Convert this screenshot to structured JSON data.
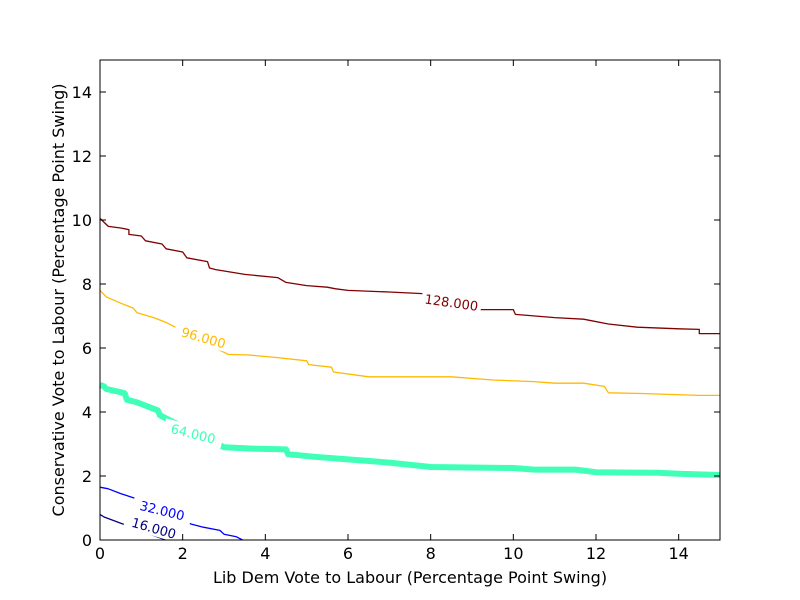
{
  "chart_data": {
    "type": "line",
    "xlabel": "Lib Dem Vote to Labour (Percentage Point Swing)",
    "ylabel": "Conservative Vote to Labour (Percentage Point Swing)",
    "xlim": [
      0,
      15
    ],
    "ylim": [
      0,
      15
    ],
    "x_ticks": [
      0,
      2,
      4,
      6,
      8,
      10,
      12,
      14
    ],
    "y_ticks": [
      0,
      2,
      4,
      6,
      8,
      10,
      12,
      14
    ],
    "x_tick_labels": [
      "0",
      "2",
      "4",
      "6",
      "8",
      "10",
      "12",
      "14"
    ],
    "y_tick_labels": [
      "0",
      "2",
      "4",
      "6",
      "8",
      "10",
      "12",
      "14"
    ],
    "grid": false,
    "series": [
      {
        "level": "16.000",
        "color": "#00007f",
        "label_at": [
          1.3,
          0.35
        ],
        "label_angle": 16,
        "points": [
          [
            0,
            0.8
          ],
          [
            0.1,
            0.72
          ],
          [
            1.55,
            0.02
          ],
          [
            1.6,
            0
          ]
        ]
      },
      {
        "level": "32.000",
        "color": "#0000ff",
        "label_at": [
          1.5,
          0.9
        ],
        "label_angle": 14,
        "points": [
          [
            0,
            1.65
          ],
          [
            0.2,
            1.6
          ],
          [
            0.5,
            1.45
          ],
          [
            0.9,
            1.28
          ],
          [
            1.0,
            1.25
          ],
          [
            2.2,
            0.5
          ],
          [
            2.5,
            0.4
          ],
          [
            2.9,
            0.3
          ],
          [
            3.0,
            0.18
          ],
          [
            3.3,
            0.1
          ],
          [
            3.45,
            0
          ]
        ]
      },
      {
        "level": "64.000",
        "color": "#40ffb7",
        "label_at": [
          2.25,
          3.3
        ],
        "label_angle": 14,
        "points": [
          [
            0,
            4.85
          ],
          [
            0.1,
            4.8
          ],
          [
            0.15,
            4.72
          ],
          [
            0.5,
            4.62
          ],
          [
            0.6,
            4.58
          ],
          [
            0.65,
            4.38
          ],
          [
            0.9,
            4.3
          ],
          [
            1.0,
            4.25
          ],
          [
            1.4,
            4.05
          ],
          [
            1.45,
            3.9
          ],
          [
            1.6,
            3.8
          ],
          [
            3.0,
            2.9
          ],
          [
            3.8,
            2.85
          ],
          [
            4.5,
            2.83
          ],
          [
            4.55,
            2.68
          ],
          [
            5.2,
            2.6
          ],
          [
            6.0,
            2.52
          ],
          [
            7.0,
            2.42
          ],
          [
            8.0,
            2.28
          ],
          [
            10.0,
            2.25
          ],
          [
            10.5,
            2.2
          ],
          [
            11.5,
            2.2
          ],
          [
            12.0,
            2.12
          ],
          [
            13.5,
            2.1
          ],
          [
            14.0,
            2.07
          ],
          [
            15.0,
            2.03
          ]
        ]
      },
      {
        "level": "96.000",
        "color": "#ffb900",
        "label_at": [
          2.5,
          6.3
        ],
        "label_angle": 16,
        "points": [
          [
            0,
            7.8
          ],
          [
            0.15,
            7.6
          ],
          [
            0.5,
            7.4
          ],
          [
            0.8,
            7.25
          ],
          [
            0.9,
            7.1
          ],
          [
            1.3,
            6.95
          ],
          [
            1.6,
            6.8
          ],
          [
            3.1,
            5.8
          ],
          [
            3.6,
            5.78
          ],
          [
            4.3,
            5.7
          ],
          [
            5.0,
            5.6
          ],
          [
            5.05,
            5.48
          ],
          [
            5.6,
            5.4
          ],
          [
            5.65,
            5.25
          ],
          [
            6.5,
            5.1
          ],
          [
            8.5,
            5.1
          ],
          [
            9.5,
            5.0
          ],
          [
            10.5,
            4.95
          ],
          [
            11.0,
            4.9
          ],
          [
            11.7,
            4.9
          ],
          [
            12.2,
            4.8
          ],
          [
            12.3,
            4.6
          ],
          [
            13.0,
            4.58
          ],
          [
            14.5,
            4.52
          ],
          [
            15.0,
            4.52
          ]
        ]
      },
      {
        "level": "128.000",
        "color": "#7f0000",
        "label_at": [
          8.5,
          7.4
        ],
        "label_angle": 8,
        "points": [
          [
            0,
            10.05
          ],
          [
            0.2,
            9.8
          ],
          [
            0.5,
            9.75
          ],
          [
            0.7,
            9.7
          ],
          [
            0.7,
            9.55
          ],
          [
            1.0,
            9.5
          ],
          [
            1.1,
            9.35
          ],
          [
            1.5,
            9.25
          ],
          [
            1.6,
            9.1
          ],
          [
            2.0,
            9.0
          ],
          [
            2.1,
            8.82
          ],
          [
            2.6,
            8.7
          ],
          [
            2.65,
            8.5
          ],
          [
            2.8,
            8.45
          ],
          [
            3.5,
            8.3
          ],
          [
            4.3,
            8.2
          ],
          [
            4.5,
            8.05
          ],
          [
            5.0,
            7.95
          ],
          [
            5.5,
            7.9
          ],
          [
            5.7,
            7.85
          ],
          [
            6.0,
            7.8
          ],
          [
            7.0,
            7.75
          ],
          [
            7.8,
            7.7
          ],
          [
            9.2,
            7.2
          ],
          [
            10.0,
            7.2
          ],
          [
            10.05,
            7.05
          ],
          [
            11.0,
            6.95
          ],
          [
            11.7,
            6.9
          ],
          [
            12.3,
            6.75
          ],
          [
            13.0,
            6.65
          ],
          [
            14.0,
            6.6
          ],
          [
            14.5,
            6.58
          ],
          [
            14.5,
            6.45
          ],
          [
            15.0,
            6.45
          ]
        ]
      }
    ]
  }
}
